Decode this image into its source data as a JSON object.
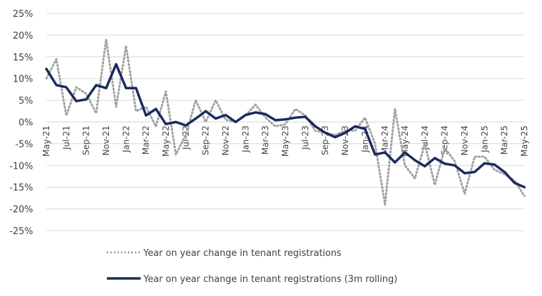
{
  "chart_data": {
    "type": "line",
    "title": "",
    "xlabel": "",
    "ylabel": "",
    "ylim": [
      -25,
      25
    ],
    "y_tick_step": 5,
    "y_tick_labels": [
      "25%",
      "20%",
      "15%",
      "10%",
      "5%",
      "0%",
      "-5%",
      "-10%",
      "-15%",
      "-20%",
      "-25%"
    ],
    "grid": "horizontal",
    "legend_position": "bottom",
    "x": [
      "May-21",
      "Jun-21",
      "Jul-21",
      "Aug-21",
      "Sep-21",
      "Oct-21",
      "Nov-21",
      "Dec-21",
      "Jan-22",
      "Feb-22",
      "Mar-22",
      "Apr-22",
      "May-22",
      "Jun-22",
      "Jul-22",
      "Aug-22",
      "Sep-22",
      "Oct-22",
      "Nov-22",
      "Dec-22",
      "Jan-23",
      "Feb-23",
      "Mar-23",
      "Apr-23",
      "May-23",
      "Jun-23",
      "Jul-23",
      "Aug-23",
      "Sep-23",
      "Oct-23",
      "Nov-23",
      "Dec-23",
      "Jan-24",
      "Feb-24",
      "Mar-24",
      "Apr-24",
      "May-24",
      "Jun-24",
      "Jul-24",
      "Aug-24",
      "Sep-24",
      "Oct-24",
      "Nov-24",
      "Dec-24",
      "Jan-25",
      "Feb-25",
      "Mar-25",
      "Apr-25",
      "May-25"
    ],
    "x_tick_labels": [
      "May-21",
      "Jul-21",
      "Sep-21",
      "Nov-21",
      "Jan-22",
      "Mar-22",
      "May-22",
      "Jul-22",
      "Sep-22",
      "Nov-22",
      "Jan-23",
      "Mar-23",
      "May-23",
      "Jul-23",
      "Sep-23",
      "Nov-23",
      "Jan-24",
      "Mar-24",
      "May-24",
      "Jul-24",
      "Sep-24",
      "Nov-24",
      "Jan-25",
      "Mar-25",
      "May-25"
    ],
    "series": [
      {
        "name": "Year on year change in tenant registrations",
        "style": "dotted",
        "color": "#a0a0a0",
        "values": [
          10,
          14.5,
          1.5,
          8,
          6.5,
          2,
          19,
          3.5,
          17.5,
          2.5,
          3.5,
          -1,
          7,
          -7.5,
          -3,
          5,
          0,
          5,
          0.5,
          0,
          1.5,
          4,
          1,
          -1,
          -0.5,
          3,
          1.5,
          -2,
          -2.5,
          -3,
          -2,
          -2,
          1,
          -5,
          -19,
          3,
          -10,
          -13,
          -5,
          -14.5,
          -6,
          -9,
          -16.5,
          -8,
          -8,
          -11,
          -12,
          -13.5,
          -17
        ]
      },
      {
        "name": "Year on year change in tenant registrations (3m rolling)",
        "style": "solid",
        "color": "#1a2b5f",
        "values": [
          12.2,
          8.5,
          8,
          4.8,
          5.2,
          8.5,
          7.8,
          13.3,
          7.8,
          7.8,
          1.5,
          3,
          -0.5,
          0,
          -0.8,
          0.8,
          2.5,
          0.8,
          1.6,
          0,
          1.6,
          2.2,
          1.8,
          0.4,
          0.6,
          1,
          1.2,
          -1,
          -2.5,
          -3.5,
          -2.5,
          -1,
          -1.6,
          -7.5,
          -7,
          -9.3,
          -7,
          -8.8,
          -10.2,
          -8.3,
          -9.6,
          -10,
          -11.8,
          -11.5,
          -9.5,
          -9.8,
          -11.5,
          -14,
          -15
        ]
      }
    ]
  }
}
